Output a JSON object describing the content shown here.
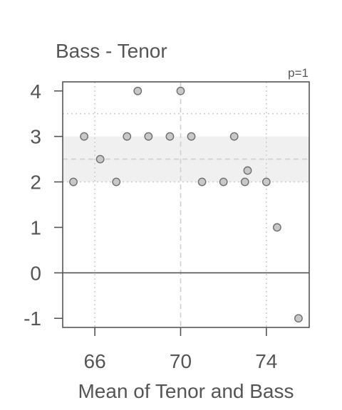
{
  "chart_data": {
    "type": "scatter",
    "title": "Bass - Tenor",
    "annotation": "p=1",
    "xlabel": "Mean of Tenor and Bass",
    "ylabel": "",
    "xlim": [
      64.5,
      76.0
    ],
    "ylim": [
      -1.2,
      4.2
    ],
    "xticks": [
      66,
      70,
      74
    ],
    "yticks": [
      -1,
      0,
      1,
      2,
      3,
      4
    ],
    "x_grid_dotted": [
      66,
      74
    ],
    "x_grid_dashed": [
      70
    ],
    "reference_lines": {
      "zero": 0,
      "mean": 2.5,
      "upper_dotted": 3.5
    },
    "band": [
      2,
      3
    ],
    "colors": {
      "point_fill": "#c8c8c8",
      "point_stroke": "#6e6e6e",
      "axis": "#555555",
      "text": "#555555",
      "band": "#f0f0f0",
      "grid": "#cfcfcf"
    },
    "points": [
      {
        "x": 65.0,
        "y": 2
      },
      {
        "x": 65.5,
        "y": 3
      },
      {
        "x": 66.25,
        "y": 2.5
      },
      {
        "x": 67.0,
        "y": 2
      },
      {
        "x": 67.5,
        "y": 3
      },
      {
        "x": 68.0,
        "y": 4
      },
      {
        "x": 68.5,
        "y": 3
      },
      {
        "x": 69.5,
        "y": 3
      },
      {
        "x": 70.0,
        "y": 4
      },
      {
        "x": 70.5,
        "y": 3
      },
      {
        "x": 71.0,
        "y": 2
      },
      {
        "x": 72.0,
        "y": 2
      },
      {
        "x": 72.5,
        "y": 3
      },
      {
        "x": 73.0,
        "y": 2
      },
      {
        "x": 73.125,
        "y": 2.25
      },
      {
        "x": 74.0,
        "y": 2
      },
      {
        "x": 74.5,
        "y": 1
      },
      {
        "x": 75.5,
        "y": -1
      }
    ]
  }
}
